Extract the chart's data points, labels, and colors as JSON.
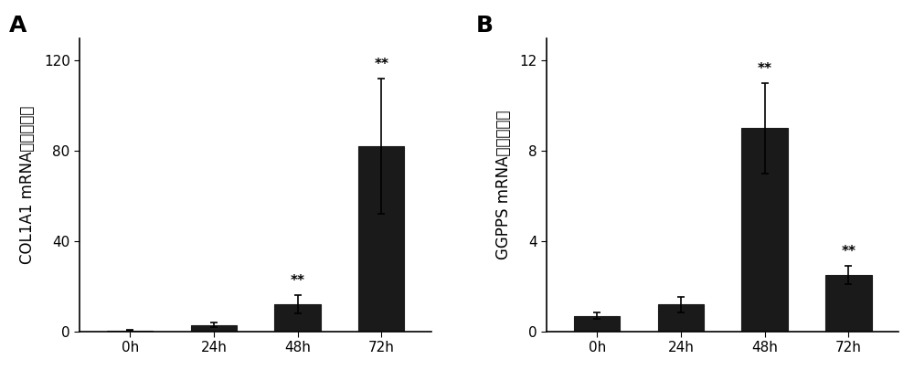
{
  "panel_A": {
    "label": "A",
    "categories": [
      "0h",
      "24h",
      "48h",
      "72h"
    ],
    "values": [
      0.5,
      3.0,
      12.0,
      82.0
    ],
    "errors": [
      0.3,
      1.0,
      4.0,
      30.0
    ],
    "significance": [
      false,
      false,
      true,
      true
    ],
    "ylabel": "COL1A1 mRNA相对表达量",
    "ylim": [
      0,
      130
    ],
    "yticks": [
      0,
      40,
      80,
      120
    ]
  },
  "panel_B": {
    "label": "B",
    "categories": [
      "0h",
      "24h",
      "48h",
      "72h"
    ],
    "values": [
      0.7,
      1.2,
      9.0,
      2.5
    ],
    "errors": [
      0.15,
      0.35,
      2.0,
      0.4
    ],
    "significance": [
      false,
      false,
      true,
      true
    ],
    "ylabel": "GGPPS mRNA相对表达量",
    "ylim": [
      0,
      13
    ],
    "yticks": [
      0,
      4,
      8,
      12
    ]
  },
  "bar_color": "#1a1a1a",
  "bar_width": 0.55,
  "sig_text": "**",
  "sig_fontsize": 11,
  "tick_fontsize": 11,
  "ylabel_fontsize": 12,
  "panel_label_fontsize": 18,
  "background_color": "#ffffff",
  "fig_background": "#ffffff"
}
